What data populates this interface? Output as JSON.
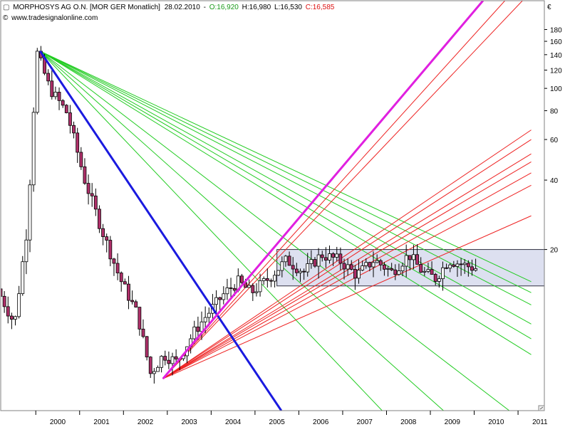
{
  "header": {
    "symbol": "MORPHOSYS AG O.N. [MOR GER  Monatlich]",
    "date": "28.02.2010",
    "open": "O:16,920",
    "high": "H:16,980",
    "low": "L:16,530",
    "close": "C:16,585",
    "website": "www.tradesignalonline.com",
    "collapse_glyph": "▢"
  },
  "colors": {
    "background": "#ffffff",
    "candle_up": "#ffffff",
    "candle_down": "#b0306a",
    "wick": "#000000",
    "fan_green": "#22cc22",
    "fan_red": "#ee2222",
    "trend_blue": "#1a1adf",
    "trend_magenta": "#e020e0",
    "box_fill": "#dde0f0",
    "open_text": "#1a9a1a",
    "close_text": "#dd1111"
  },
  "chart_data": {
    "type": "candlestick",
    "title": "MORPHOSYS AG O.N. [MOR GER  Monatlich]",
    "y_scale": "log",
    "y_unit": "€",
    "y_ticks": [
      20,
      40,
      60,
      80,
      100,
      120,
      140,
      160,
      180
    ],
    "ylim": [
      4,
      240
    ],
    "x_ticks": [
      "2000",
      "2001",
      "2002",
      "2003",
      "2004",
      "2005",
      "2006",
      "2007",
      "2008",
      "2009",
      "2010",
      "2011"
    ],
    "xlim": [
      1999.2,
      2011.6
    ],
    "price_anchors": [
      {
        "t": 1999.2,
        "v": 13.5
      },
      {
        "t": 1999.6,
        "v": 9.5
      },
      {
        "t": 1999.9,
        "v": 26
      },
      {
        "t": 2000.1,
        "v": 145
      },
      {
        "t": 2000.4,
        "v": 100
      },
      {
        "t": 2000.8,
        "v": 78
      },
      {
        "t": 2001.2,
        "v": 40
      },
      {
        "t": 2001.6,
        "v": 24
      },
      {
        "t": 2002.0,
        "v": 15
      },
      {
        "t": 2002.4,
        "v": 10.5
      },
      {
        "t": 2002.7,
        "v": 5.8
      },
      {
        "t": 2003.0,
        "v": 7
      },
      {
        "t": 2003.3,
        "v": 6.5
      },
      {
        "t": 2003.7,
        "v": 8.8
      },
      {
        "t": 2004.0,
        "v": 10.5
      },
      {
        "t": 2004.4,
        "v": 13
      },
      {
        "t": 2004.7,
        "v": 14.5
      },
      {
        "t": 2005.0,
        "v": 13
      },
      {
        "t": 2005.4,
        "v": 15
      },
      {
        "t": 2005.8,
        "v": 18
      },
      {
        "t": 2006.2,
        "v": 16
      },
      {
        "t": 2006.6,
        "v": 19
      },
      {
        "t": 2007.0,
        "v": 18
      },
      {
        "t": 2007.4,
        "v": 15.5
      },
      {
        "t": 2007.8,
        "v": 18
      },
      {
        "t": 2008.2,
        "v": 16
      },
      {
        "t": 2008.6,
        "v": 19
      },
      {
        "t": 2008.9,
        "v": 16
      },
      {
        "t": 2009.2,
        "v": 15
      },
      {
        "t": 2009.5,
        "v": 18
      },
      {
        "t": 2009.9,
        "v": 17
      },
      {
        "t": 2010.1,
        "v": 16.6
      }
    ],
    "fans": [
      {
        "name": "green fan",
        "origin": {
          "t": 2000.1,
          "v": 145
        },
        "color": "#22cc22",
        "targets": [
          {
            "t": 2011.3,
            "v": 14.5
          },
          {
            "t": 2011.3,
            "v": 13
          },
          {
            "t": 2011.3,
            "v": 11.5
          },
          {
            "t": 2011.3,
            "v": 9.5
          },
          {
            "t": 2011.3,
            "v": 8.2
          },
          {
            "t": 2011.3,
            "v": 7
          },
          {
            "t": 2010.8,
            "v": 4
          },
          {
            "t": 2009.3,
            "v": 4
          },
          {
            "t": 2007.9,
            "v": 4
          }
        ]
      },
      {
        "name": "red fan",
        "origin": {
          "t": 2002.9,
          "v": 5.5
        },
        "color": "#ee2222",
        "targets": [
          {
            "t": 2011.3,
            "v": 28
          },
          {
            "t": 2011.3,
            "v": 38
          },
          {
            "t": 2011.3,
            "v": 43
          },
          {
            "t": 2011.3,
            "v": 48
          },
          {
            "t": 2011.3,
            "v": 52
          },
          {
            "t": 2011.3,
            "v": 60
          },
          {
            "t": 2011.3,
            "v": 66
          },
          {
            "t": 2011.1,
            "v": 240
          },
          {
            "t": 2010.7,
            "v": 240
          }
        ]
      }
    ],
    "trendlines": [
      {
        "name": "blue down trend",
        "color": "#1a1adf",
        "from": {
          "t": 2000.1,
          "v": 145
        },
        "to": {
          "t": 2005.6,
          "v": 4
        }
      },
      {
        "name": "magenta up trend",
        "color": "#e020e0",
        "from": {
          "t": 2002.9,
          "v": 5.5
        },
        "to": {
          "t": 2010.2,
          "v": 240
        }
      }
    ],
    "range_box": {
      "t_start": 2005.5,
      "t_end": 2011.9,
      "v_low": 13.9,
      "v_high": 20
    }
  }
}
